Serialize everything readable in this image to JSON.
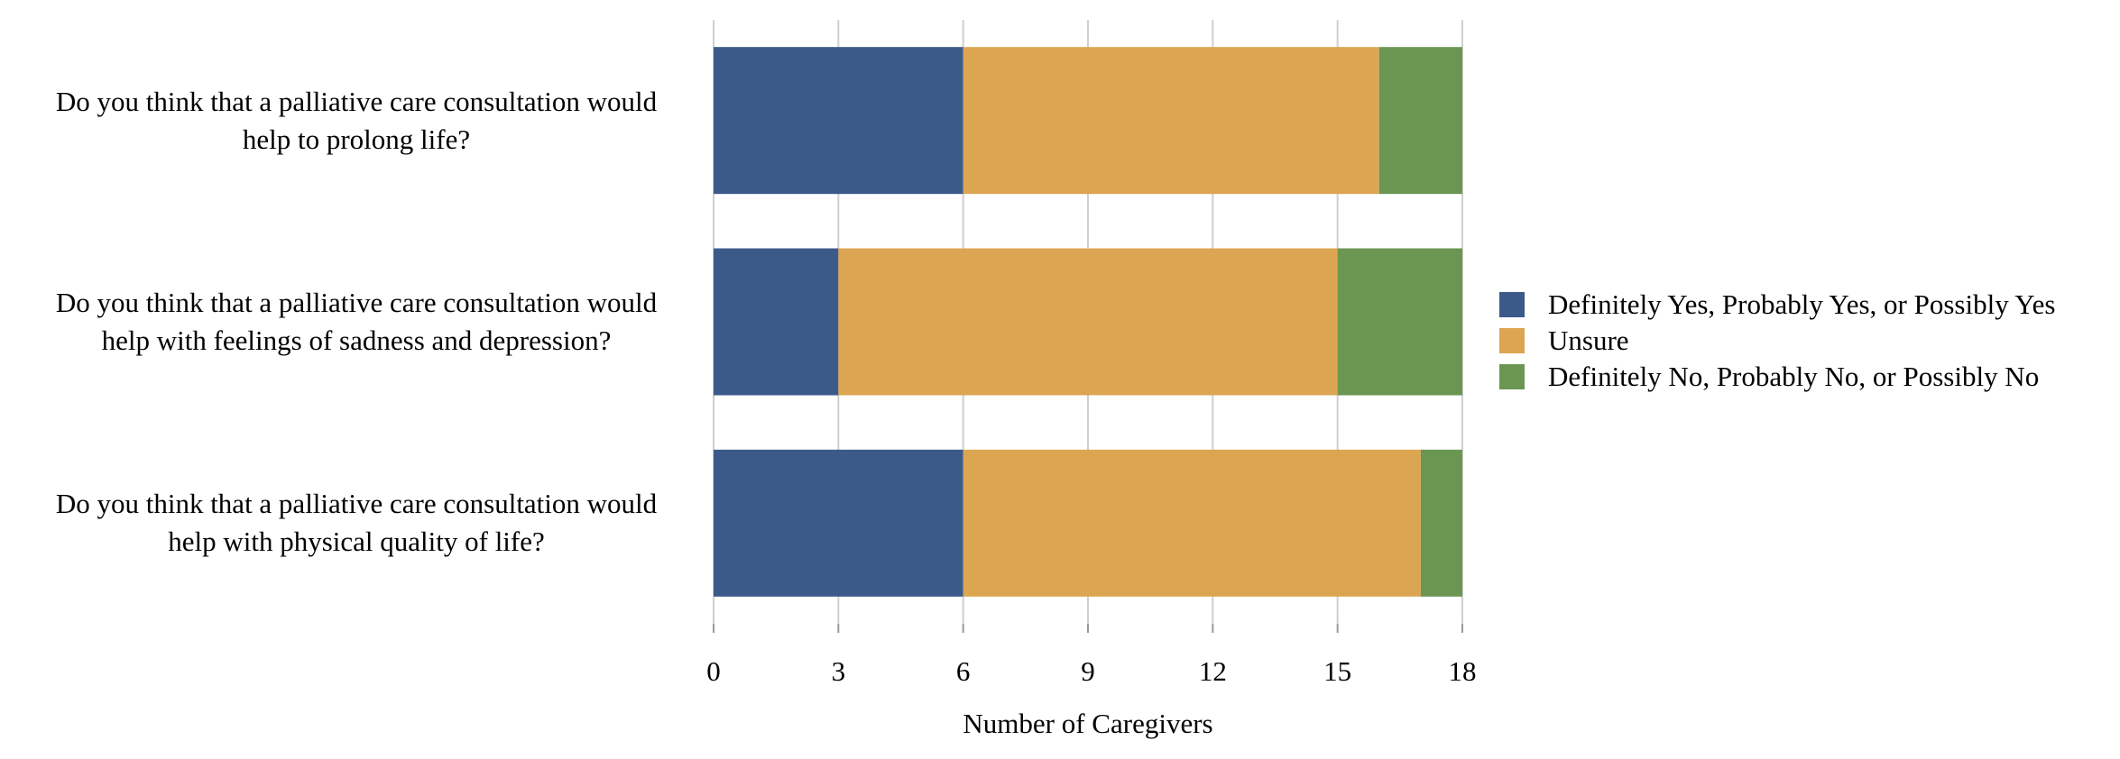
{
  "chart_data": {
    "type": "bar",
    "orientation": "horizontal",
    "stacked": true,
    "categories": [
      "Do you think that a palliative care consultation would help to prolong life?",
      "Do you think that a palliative care consultation would help with feelings of sadness and depression?",
      "Do you think that a palliative care consultation would help with physical quality of life?"
    ],
    "category_lines": [
      [
        "Do you think that a palliative care consultation would",
        "help to prolong life?"
      ],
      [
        "Do you think that a palliative care consultation would",
        "help with feelings of sadness and depression?"
      ],
      [
        "Do you think that a palliative care consultation would",
        "help with physical quality of life?"
      ]
    ],
    "series": [
      {
        "name": "Definitely Yes, Probably Yes, or Possibly Yes",
        "color": "#3b5a8a",
        "values": [
          6,
          3,
          6
        ]
      },
      {
        "name": "Unsure",
        "color": "#dca552",
        "values": [
          10,
          12,
          11
        ]
      },
      {
        "name": "Definitely No, Probably No, or Possibly No",
        "color": "#6a9652",
        "values": [
          2,
          3,
          1
        ]
      }
    ],
    "xlabel": "Number of Caregivers",
    "xlim": [
      0,
      18
    ],
    "xticks": [
      0,
      3,
      6,
      9,
      12,
      15,
      18
    ],
    "grid": "vertical",
    "legend": "right"
  }
}
